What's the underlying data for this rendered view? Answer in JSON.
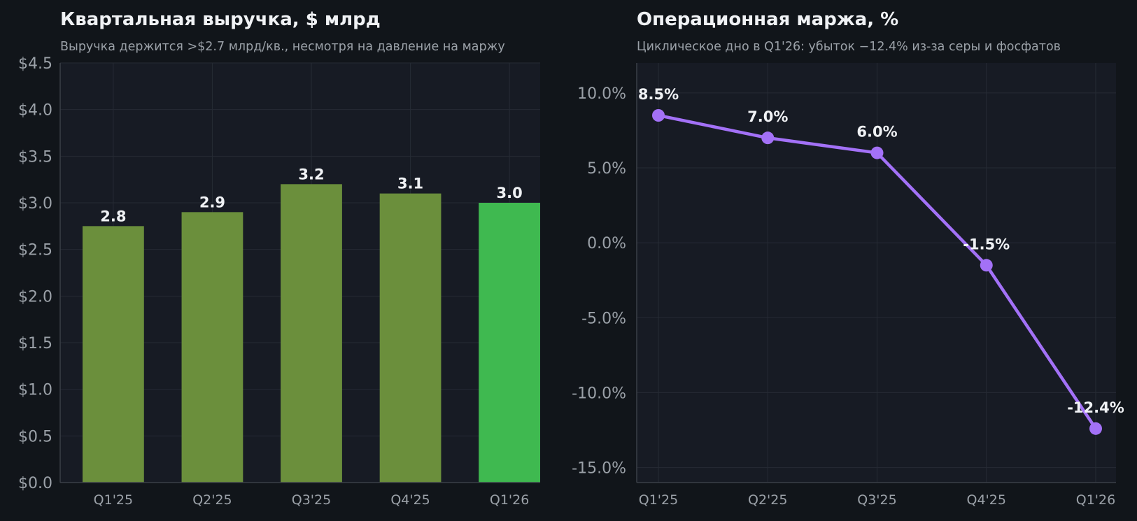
{
  "colors": {
    "background": "#11151a",
    "plot_background": "#171b24",
    "grid": "#262b34",
    "axis_text": "#9ba1a8",
    "title_text": "#f0f2f5",
    "subtitle_text": "#9ba1a8",
    "bar_default": "#6b8f3c",
    "bar_highlight": "#3fb950",
    "line": "#a371f7"
  },
  "chart_data": [
    {
      "type": "bar",
      "title": "Квартальная выручка, $ млрд",
      "subtitle": "Выручка держится >$2.7 млрд/кв., несмотря на давление на маржу",
      "categories": [
        "Q1'25",
        "Q2'25",
        "Q3'25",
        "Q4'25",
        "Q1'26"
      ],
      "values": [
        2.75,
        2.9,
        3.2,
        3.1,
        3.0
      ],
      "data_labels": [
        "2.8",
        "2.9",
        "3.2",
        "3.1",
        "3.0"
      ],
      "highlight_index": 4,
      "ylim": [
        0,
        4.5
      ],
      "yticks": [
        0,
        0.5,
        1.0,
        1.5,
        2.0,
        2.5,
        3.0,
        3.5,
        4.0,
        4.5
      ],
      "ytick_labels": [
        "$0.0",
        "$0.5",
        "$1.0",
        "$1.5",
        "$2.0",
        "$2.5",
        "$3.0",
        "$3.5",
        "$4.0",
        "$4.5"
      ],
      "grid": true
    },
    {
      "type": "line",
      "title": "Операционная маржа, %",
      "subtitle": "Циклическое дно в Q1'26: убыток −12.4% из-за серы и фосфатов",
      "categories": [
        "Q1'25",
        "Q2'25",
        "Q3'25",
        "Q4'25",
        "Q1'26"
      ],
      "values": [
        8.5,
        7.0,
        6.0,
        -1.5,
        -12.4
      ],
      "data_labels": [
        "8.5%",
        "7.0%",
        "6.0%",
        "-1.5%",
        "-12.4%"
      ],
      "ylim": [
        -16,
        12
      ],
      "yticks": [
        -15,
        -10,
        -5,
        0,
        5,
        10
      ],
      "ytick_labels": [
        "-15.0%",
        "-10.0%",
        "-5.0%",
        "0.0%",
        "5.0%",
        "10.0%"
      ],
      "grid": true
    }
  ]
}
